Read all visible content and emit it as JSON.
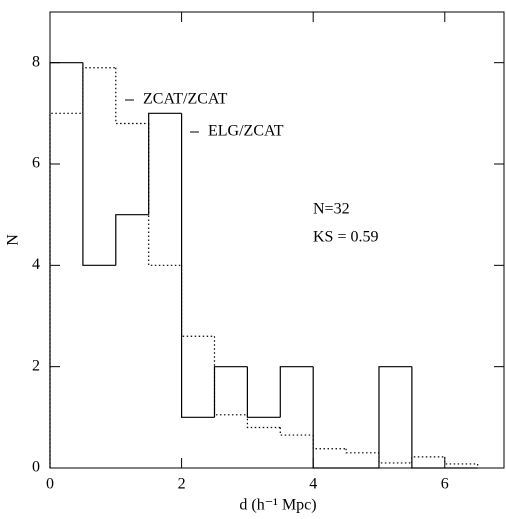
{
  "chart_data": {
    "type": "histogram",
    "xlabel": "d (h⁻¹ Mpc)",
    "ylabel": "N",
    "bins": [
      0,
      0.5,
      1,
      1.5,
      2,
      2.5,
      3,
      3.5,
      4,
      4.5,
      5,
      5.5,
      6,
      6.5
    ],
    "series": [
      {
        "name": "ELG/ZCAT",
        "color": "#000000",
        "style": "solid",
        "values": [
          8,
          4,
          5,
          7,
          1,
          2,
          1,
          2,
          0,
          0,
          2,
          0,
          0
        ]
      },
      {
        "name": "ZCAT/ZCAT",
        "color": "#000000",
        "style": "dotted",
        "values": [
          7,
          7.9,
          6.8,
          4.0,
          2.6,
          1.05,
          0.8,
          0.65,
          0.38,
          0.3,
          0.1,
          0.22,
          0.08
        ]
      }
    ],
    "annotations": [
      "N=32",
      "KS = 0.59"
    ],
    "xlim": [
      0,
      6.9
    ],
    "ylim": [
      0,
      9
    ],
    "xticks": [
      0,
      2,
      4,
      6
    ],
    "yticks": [
      0,
      2,
      4,
      6,
      8
    ]
  }
}
